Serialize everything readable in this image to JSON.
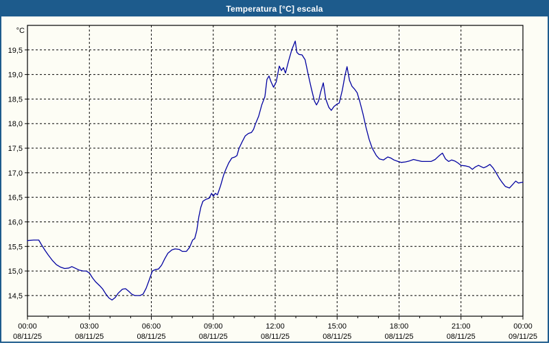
{
  "window": {
    "title": "Temperatura [°C] escala",
    "titlebar_color": "#1d5b8c",
    "border_color": "#1d5b8c",
    "background_color": "#fdfdf5"
  },
  "chart_data": {
    "type": "line",
    "title": "Temperatura [°C] escala",
    "unit_label": "°C",
    "grid": "dashed-black",
    "line_color": "#0000a0",
    "frame_color": "#000000",
    "x_hours_range": [
      0,
      24
    ],
    "ylim": [
      14.08,
      20.0
    ],
    "x_gridlines_hours": [
      3,
      6,
      9,
      12,
      15,
      18,
      21
    ],
    "x_minor_step_hours": 1,
    "y_ticks": [
      {
        "value": 19.5,
        "label": "19,5"
      },
      {
        "value": 19.0,
        "label": "19,0"
      },
      {
        "value": 18.5,
        "label": "18,5"
      },
      {
        "value": 18.0,
        "label": "18,0"
      },
      {
        "value": 17.5,
        "label": "17,5"
      },
      {
        "value": 17.0,
        "label": "17,0"
      },
      {
        "value": 16.5,
        "label": "16,5"
      },
      {
        "value": 16.0,
        "label": "16,0"
      },
      {
        "value": 15.5,
        "label": "15,5"
      },
      {
        "value": 15.0,
        "label": "15,0"
      },
      {
        "value": 14.5,
        "label": "14,5"
      }
    ],
    "x_ticks": [
      {
        "hour": 0,
        "time": "00:00",
        "date": "08/11/25"
      },
      {
        "hour": 3,
        "time": "03:00",
        "date": "08/11/25"
      },
      {
        "hour": 6,
        "time": "06:00",
        "date": "08/11/25"
      },
      {
        "hour": 9,
        "time": "09:00",
        "date": "08/11/25"
      },
      {
        "hour": 12,
        "time": "12:00",
        "date": "08/11/25"
      },
      {
        "hour": 15,
        "time": "15:00",
        "date": "08/11/25"
      },
      {
        "hour": 18,
        "time": "18:00",
        "date": "08/11/25"
      },
      {
        "hour": 21,
        "time": "21:00",
        "date": "08/11/25"
      },
      {
        "hour": 24,
        "time": "00:00",
        "date": "09/11/25"
      }
    ],
    "series": [
      {
        "name": "Temperatura",
        "color": "#0000a0",
        "points": [
          [
            0,
            15.62
          ],
          [
            0.3,
            15.63
          ],
          [
            0.55,
            15.63
          ],
          [
            0.7,
            15.52
          ],
          [
            0.85,
            15.42
          ],
          [
            1,
            15.33
          ],
          [
            1.2,
            15.22
          ],
          [
            1.4,
            15.13
          ],
          [
            1.6,
            15.08
          ],
          [
            1.8,
            15.05
          ],
          [
            2,
            15.06
          ],
          [
            2.15,
            15.09
          ],
          [
            2.3,
            15.06
          ],
          [
            2.5,
            15.02
          ],
          [
            2.7,
            15.0
          ],
          [
            2.85,
            15.0
          ],
          [
            3,
            14.96
          ],
          [
            3.15,
            14.86
          ],
          [
            3.3,
            14.78
          ],
          [
            3.5,
            14.7
          ],
          [
            3.65,
            14.63
          ],
          [
            3.8,
            14.53
          ],
          [
            3.95,
            14.45
          ],
          [
            4.1,
            14.41
          ],
          [
            4.25,
            14.46
          ],
          [
            4.4,
            14.55
          ],
          [
            4.6,
            14.63
          ],
          [
            4.75,
            14.64
          ],
          [
            4.9,
            14.59
          ],
          [
            5.05,
            14.53
          ],
          [
            5.2,
            14.5
          ],
          [
            5.45,
            14.5
          ],
          [
            5.6,
            14.53
          ],
          [
            5.75,
            14.65
          ],
          [
            5.9,
            14.82
          ],
          [
            6.05,
            15.0
          ],
          [
            6.2,
            15.03
          ],
          [
            6.35,
            15.04
          ],
          [
            6.5,
            15.12
          ],
          [
            6.65,
            15.25
          ],
          [
            6.8,
            15.36
          ],
          [
            7,
            15.43
          ],
          [
            7.15,
            15.45
          ],
          [
            7.35,
            15.44
          ],
          [
            7.5,
            15.4
          ],
          [
            7.7,
            15.4
          ],
          [
            7.85,
            15.48
          ],
          [
            8,
            15.63
          ],
          [
            8.1,
            15.66
          ],
          [
            8.2,
            15.82
          ],
          [
            8.3,
            16.1
          ],
          [
            8.4,
            16.3
          ],
          [
            8.5,
            16.42
          ],
          [
            8.65,
            16.46
          ],
          [
            8.8,
            16.48
          ],
          [
            8.92,
            16.58
          ],
          [
            9,
            16.52
          ],
          [
            9.1,
            16.58
          ],
          [
            9.2,
            16.55
          ],
          [
            9.35,
            16.73
          ],
          [
            9.5,
            16.95
          ],
          [
            9.6,
            17.06
          ],
          [
            9.75,
            17.2
          ],
          [
            9.9,
            17.3
          ],
          [
            10.05,
            17.32
          ],
          [
            10.15,
            17.35
          ],
          [
            10.25,
            17.5
          ],
          [
            10.4,
            17.63
          ],
          [
            10.55,
            17.75
          ],
          [
            10.7,
            17.8
          ],
          [
            10.85,
            17.82
          ],
          [
            10.95,
            17.88
          ],
          [
            11.05,
            18.0
          ],
          [
            11.2,
            18.15
          ],
          [
            11.35,
            18.38
          ],
          [
            11.5,
            18.55
          ],
          [
            11.6,
            18.9
          ],
          [
            11.7,
            18.97
          ],
          [
            11.8,
            18.85
          ],
          [
            11.92,
            18.74
          ],
          [
            12.05,
            18.85
          ],
          [
            12.2,
            19.17
          ],
          [
            12.3,
            19.08
          ],
          [
            12.4,
            19.14
          ],
          [
            12.5,
            19.03
          ],
          [
            12.65,
            19.28
          ],
          [
            12.8,
            19.5
          ],
          [
            12.97,
            19.68
          ],
          [
            13.05,
            19.45
          ],
          [
            13.15,
            19.41
          ],
          [
            13.3,
            19.4
          ],
          [
            13.45,
            19.3
          ],
          [
            13.6,
            19.0
          ],
          [
            13.75,
            18.72
          ],
          [
            13.9,
            18.46
          ],
          [
            14,
            18.38
          ],
          [
            14.1,
            18.46
          ],
          [
            14.2,
            18.64
          ],
          [
            14.33,
            18.83
          ],
          [
            14.45,
            18.5
          ],
          [
            14.6,
            18.33
          ],
          [
            14.72,
            18.27
          ],
          [
            14.85,
            18.35
          ],
          [
            15,
            18.4
          ],
          [
            15.1,
            18.42
          ],
          [
            15.25,
            18.68
          ],
          [
            15.38,
            18.98
          ],
          [
            15.48,
            19.16
          ],
          [
            15.6,
            18.88
          ],
          [
            15.72,
            18.76
          ],
          [
            15.85,
            18.7
          ],
          [
            15.97,
            18.63
          ],
          [
            16.1,
            18.45
          ],
          [
            16.25,
            18.2
          ],
          [
            16.4,
            17.92
          ],
          [
            16.55,
            17.68
          ],
          [
            16.7,
            17.5
          ],
          [
            16.9,
            17.35
          ],
          [
            17.05,
            17.28
          ],
          [
            17.25,
            17.26
          ],
          [
            17.45,
            17.32
          ],
          [
            17.6,
            17.3
          ],
          [
            17.75,
            17.26
          ],
          [
            17.95,
            17.23
          ],
          [
            18.1,
            17.21
          ],
          [
            18.3,
            17.22
          ],
          [
            18.5,
            17.24
          ],
          [
            18.7,
            17.27
          ],
          [
            18.9,
            17.25
          ],
          [
            19.1,
            17.23
          ],
          [
            19.3,
            17.23
          ],
          [
            19.55,
            17.23
          ],
          [
            19.75,
            17.27
          ],
          [
            19.95,
            17.35
          ],
          [
            20.1,
            17.4
          ],
          [
            20.25,
            17.28
          ],
          [
            20.4,
            17.23
          ],
          [
            20.55,
            17.26
          ],
          [
            20.7,
            17.24
          ],
          [
            20.85,
            17.2
          ],
          [
            21,
            17.15
          ],
          [
            21.2,
            17.14
          ],
          [
            21.4,
            17.12
          ],
          [
            21.55,
            17.07
          ],
          [
            21.7,
            17.12
          ],
          [
            21.85,
            17.15
          ],
          [
            22,
            17.12
          ],
          [
            22.1,
            17.1
          ],
          [
            22.25,
            17.13
          ],
          [
            22.4,
            17.17
          ],
          [
            22.55,
            17.1
          ],
          [
            22.7,
            17.0
          ],
          [
            22.85,
            16.89
          ],
          [
            23,
            16.8
          ],
          [
            23.15,
            16.72
          ],
          [
            23.35,
            16.69
          ],
          [
            23.5,
            16.76
          ],
          [
            23.65,
            16.83
          ],
          [
            23.78,
            16.79
          ],
          [
            23.9,
            16.8
          ],
          [
            24,
            16.81
          ]
        ]
      }
    ]
  }
}
